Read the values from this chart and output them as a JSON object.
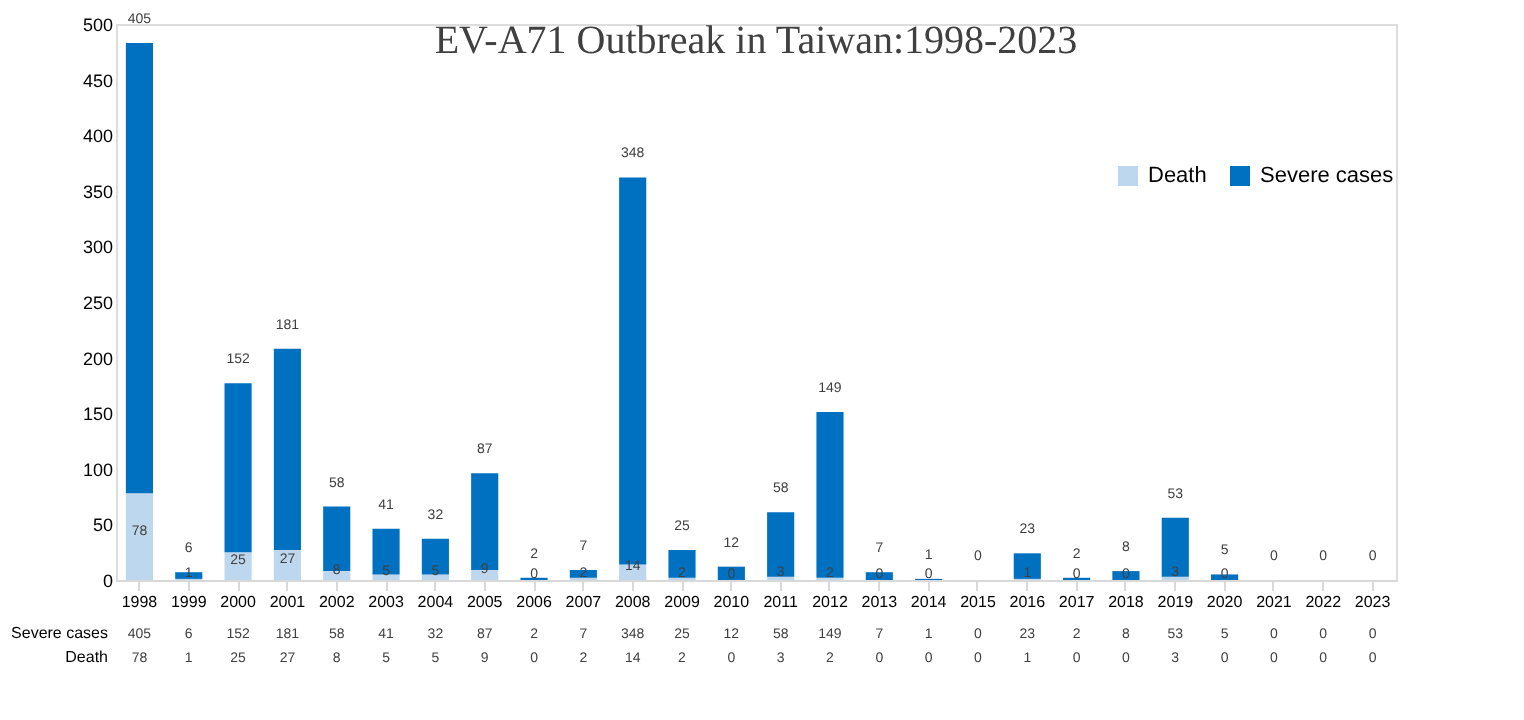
{
  "chart_data": {
    "type": "bar",
    "title": "EV-A71 Outbreak  in Taiwan:1998-2023",
    "categories": [
      "1998",
      "1999",
      "2000",
      "2001",
      "2002",
      "2003",
      "2004",
      "2005",
      "2006",
      "2007",
      "2008",
      "2009",
      "2010",
      "2011",
      "2012",
      "2013",
      "2014",
      "2015",
      "2016",
      "2017",
      "2018",
      "2019",
      "2020",
      "2021",
      "2022",
      "2023"
    ],
    "series": [
      {
        "name": "Death",
        "color": "#bdd7ee",
        "values": [
          78,
          1,
          25,
          27,
          8,
          5,
          5,
          9,
          0,
          2,
          14,
          2,
          0,
          3,
          2,
          0,
          0,
          0,
          1,
          0,
          0,
          3,
          0,
          0,
          0,
          0
        ],
        "value_labels": [
          "78",
          "1",
          "25",
          "27",
          "8",
          "5",
          "5",
          "9",
          "0",
          "2",
          "14",
          "2",
          "0",
          "3",
          "2",
          "0",
          "0",
          "0",
          "1",
          "0",
          "0",
          "3",
          "0",
          "0",
          "0",
          "0"
        ]
      },
      {
        "name": "Severe cases",
        "color": "#0070c0",
        "values": [
          405,
          6,
          152,
          181,
          58,
          41,
          32,
          87,
          2,
          7,
          348,
          25,
          12,
          58,
          149,
          7,
          1,
          0,
          23,
          2,
          8,
          53,
          5,
          0,
          0,
          0
        ],
        "value_labels": [
          "405",
          "6",
          "152",
          "181",
          "58",
          "41",
          "32",
          "87",
          "2",
          "7",
          "348",
          "25",
          "12",
          "58",
          "149",
          "7",
          "1",
          "0",
          "23",
          "2",
          "8",
          "53",
          "5",
          "0",
          "0",
          "0"
        ]
      }
    ],
    "stacked": true,
    "ylim": [
      0,
      500
    ],
    "yticks": [
      0,
      50,
      100,
      150,
      200,
      250,
      300,
      350,
      400,
      450,
      500
    ],
    "grid": false,
    "legend": "right"
  }
}
